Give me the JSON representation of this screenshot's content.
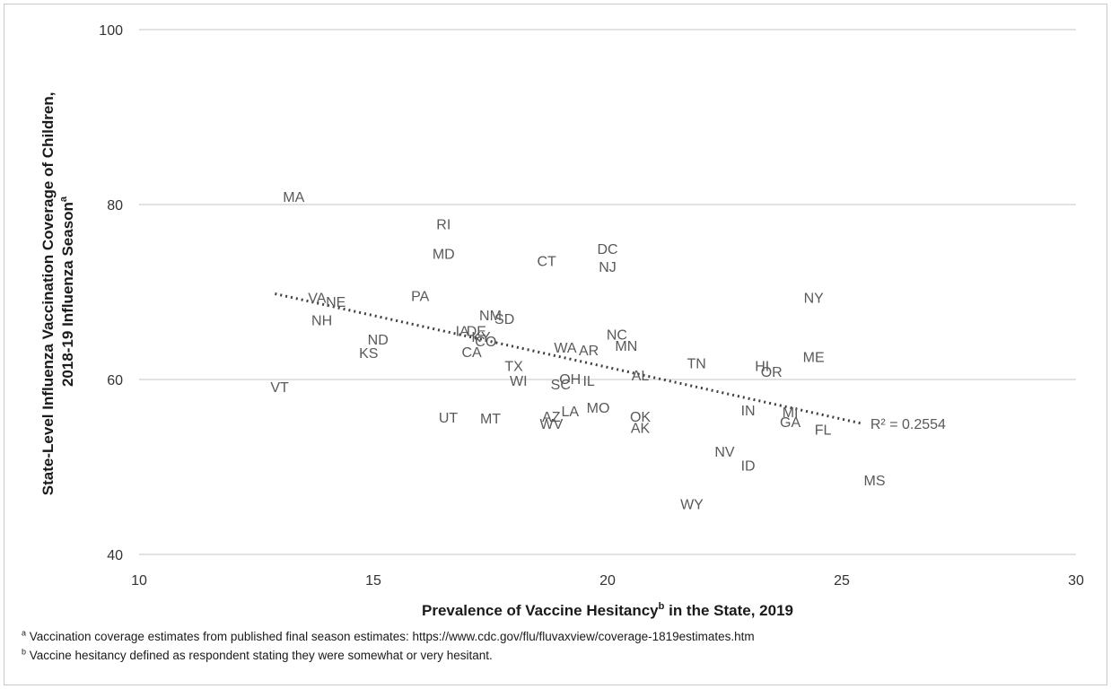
{
  "chart_data": {
    "type": "scatter",
    "xlim": [
      10,
      30
    ],
    "ylim": [
      40,
      100
    ],
    "xticks": [
      "10",
      "15",
      "20",
      "25",
      "30"
    ],
    "yticks": [
      "40",
      "60",
      "80",
      "100"
    ],
    "grid": "horizontal",
    "xlabel": "Prevalence of Vaccine Hesitancy",
    "xlabel_sup": "b",
    "xlabel_suffix": " in the State, 2019",
    "ylabel_line1": "State-Level Influenza Vaccination Coverage of Children,",
    "ylabel_line2": "2018-19 Influenza Season",
    "ylabel_sup": "a",
    "trendline": {
      "type": "linear",
      "x": [
        12.9,
        25.4
      ],
      "y": [
        69.8,
        55.0
      ],
      "style": "dotted"
    },
    "r2_label": "R² = 0.2554",
    "points": [
      {
        "label": "MA",
        "x": 13.3,
        "y": 80.9
      },
      {
        "label": "RI",
        "x": 16.5,
        "y": 77.8
      },
      {
        "label": "MD",
        "x": 16.5,
        "y": 74.4
      },
      {
        "label": "CT",
        "x": 18.7,
        "y": 73.6
      },
      {
        "label": "DC",
        "x": 20.0,
        "y": 75.0
      },
      {
        "label": "NJ",
        "x": 20.0,
        "y": 72.9
      },
      {
        "label": "VA",
        "x": 13.8,
        "y": 69.4
      },
      {
        "label": "NE",
        "x": 14.2,
        "y": 68.9
      },
      {
        "label": "PA",
        "x": 16.0,
        "y": 69.6
      },
      {
        "label": "NY",
        "x": 24.4,
        "y": 69.4
      },
      {
        "label": "NH",
        "x": 13.9,
        "y": 66.8
      },
      {
        "label": "NM",
        "x": 17.5,
        "y": 67.4
      },
      {
        "label": "SD",
        "x": 17.8,
        "y": 67.0
      },
      {
        "label": "IA",
        "x": 16.9,
        "y": 65.6
      },
      {
        "label": "DE",
        "x": 17.2,
        "y": 65.6
      },
      {
        "label": "NC",
        "x": 20.2,
        "y": 65.2
      },
      {
        "label": "ND",
        "x": 15.1,
        "y": 64.6
      },
      {
        "label": "KY",
        "x": 17.3,
        "y": 64.9
      },
      {
        "label": "CO",
        "x": 17.4,
        "y": 64.4
      },
      {
        "label": "MN",
        "x": 20.4,
        "y": 63.9
      },
      {
        "label": "WA",
        "x": 19.1,
        "y": 63.7
      },
      {
        "label": "AR",
        "x": 19.6,
        "y": 63.4
      },
      {
        "label": "KS",
        "x": 14.9,
        "y": 63.1
      },
      {
        "label": "CA",
        "x": 17.1,
        "y": 63.2
      },
      {
        "label": "ME",
        "x": 24.4,
        "y": 62.6
      },
      {
        "label": "TX",
        "x": 18.0,
        "y": 61.6
      },
      {
        "label": "TN",
        "x": 21.9,
        "y": 61.9
      },
      {
        "label": "HI",
        "x": 23.3,
        "y": 61.6
      },
      {
        "label": "OR",
        "x": 23.5,
        "y": 60.9
      },
      {
        "label": "AL",
        "x": 20.7,
        "y": 60.5
      },
      {
        "label": "WI",
        "x": 18.1,
        "y": 59.9
      },
      {
        "label": "OH",
        "x": 19.2,
        "y": 60.1
      },
      {
        "label": "IL",
        "x": 19.6,
        "y": 59.9
      },
      {
        "label": "SC",
        "x": 19.0,
        "y": 59.5
      },
      {
        "label": "VT",
        "x": 13.0,
        "y": 59.2
      },
      {
        "label": "MO",
        "x": 19.8,
        "y": 56.8
      },
      {
        "label": "LA",
        "x": 19.2,
        "y": 56.4
      },
      {
        "label": "AZ",
        "x": 18.8,
        "y": 55.8
      },
      {
        "label": "WV",
        "x": 18.8,
        "y": 55.0
      },
      {
        "label": "UT",
        "x": 16.6,
        "y": 55.7
      },
      {
        "label": "MT",
        "x": 17.5,
        "y": 55.6
      },
      {
        "label": "OK",
        "x": 20.7,
        "y": 55.8
      },
      {
        "label": "AK",
        "x": 20.7,
        "y": 54.5
      },
      {
        "label": "IN",
        "x": 23.0,
        "y": 56.5
      },
      {
        "label": "MI",
        "x": 23.9,
        "y": 56.3
      },
      {
        "label": "GA",
        "x": 23.9,
        "y": 55.2
      },
      {
        "label": "FL",
        "x": 24.6,
        "y": 54.3
      },
      {
        "label": "NV",
        "x": 22.5,
        "y": 51.8
      },
      {
        "label": "ID",
        "x": 23.0,
        "y": 50.2
      },
      {
        "label": "MS",
        "x": 25.7,
        "y": 48.5
      },
      {
        "label": "WY",
        "x": 21.8,
        "y": 45.8
      }
    ]
  },
  "footnotes": {
    "a_marker": "a",
    "a_text": " Vaccination coverage estimates from published final season estimates: https://www.cdc.gov/flu/fluvaxview/coverage-1819estimates.htm",
    "b_marker": "b",
    "b_text": " Vaccine hesitancy defined as respondent stating they were somewhat or very hesitant."
  },
  "colors": {
    "gridline": "#d9d9d9",
    "label": "#595959",
    "trendline": "#404040"
  }
}
